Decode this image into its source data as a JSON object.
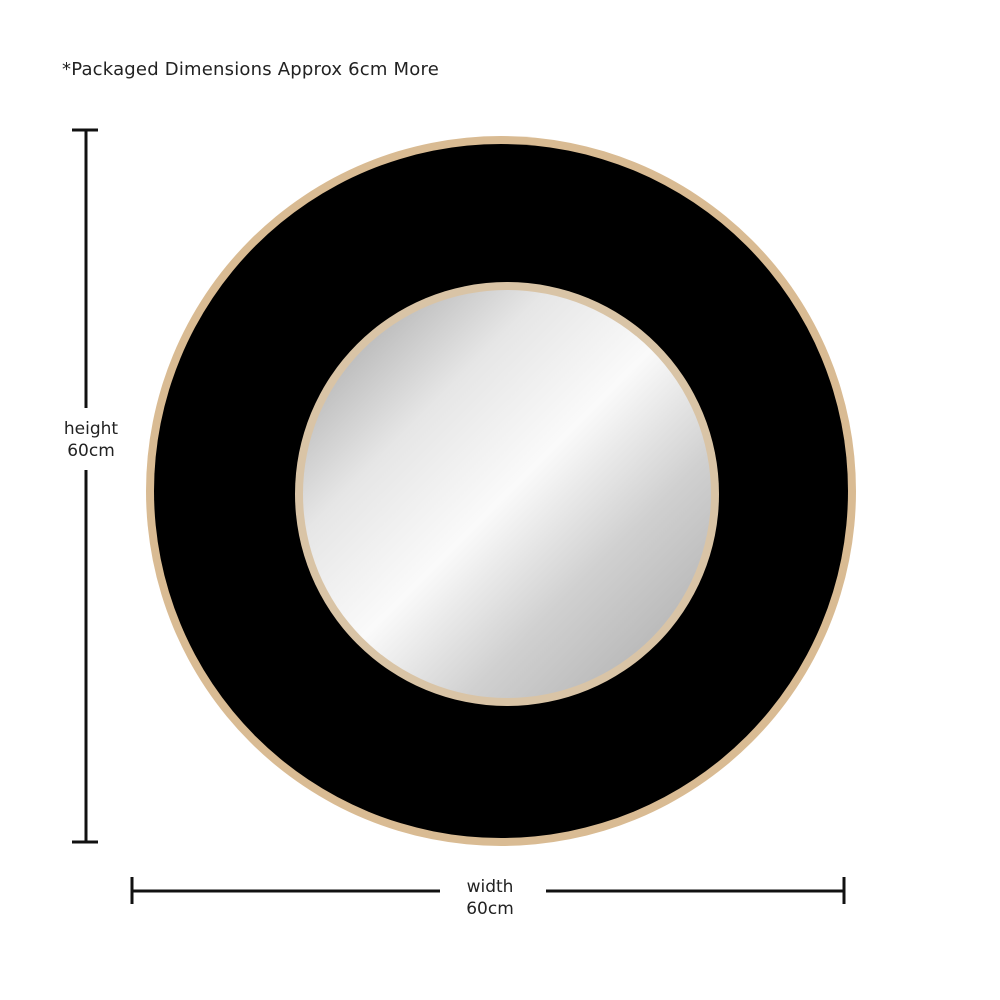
{
  "note": "*Packaged Dimensions Approx 6cm More",
  "height": {
    "label": "height",
    "value": "60cm"
  },
  "width": {
    "label": "width",
    "value": "60cm"
  },
  "colors": {
    "frame": "#000000",
    "rim": "#d9bb93",
    "mirror": "#d8d8d8",
    "dimension_line": "#111111"
  }
}
